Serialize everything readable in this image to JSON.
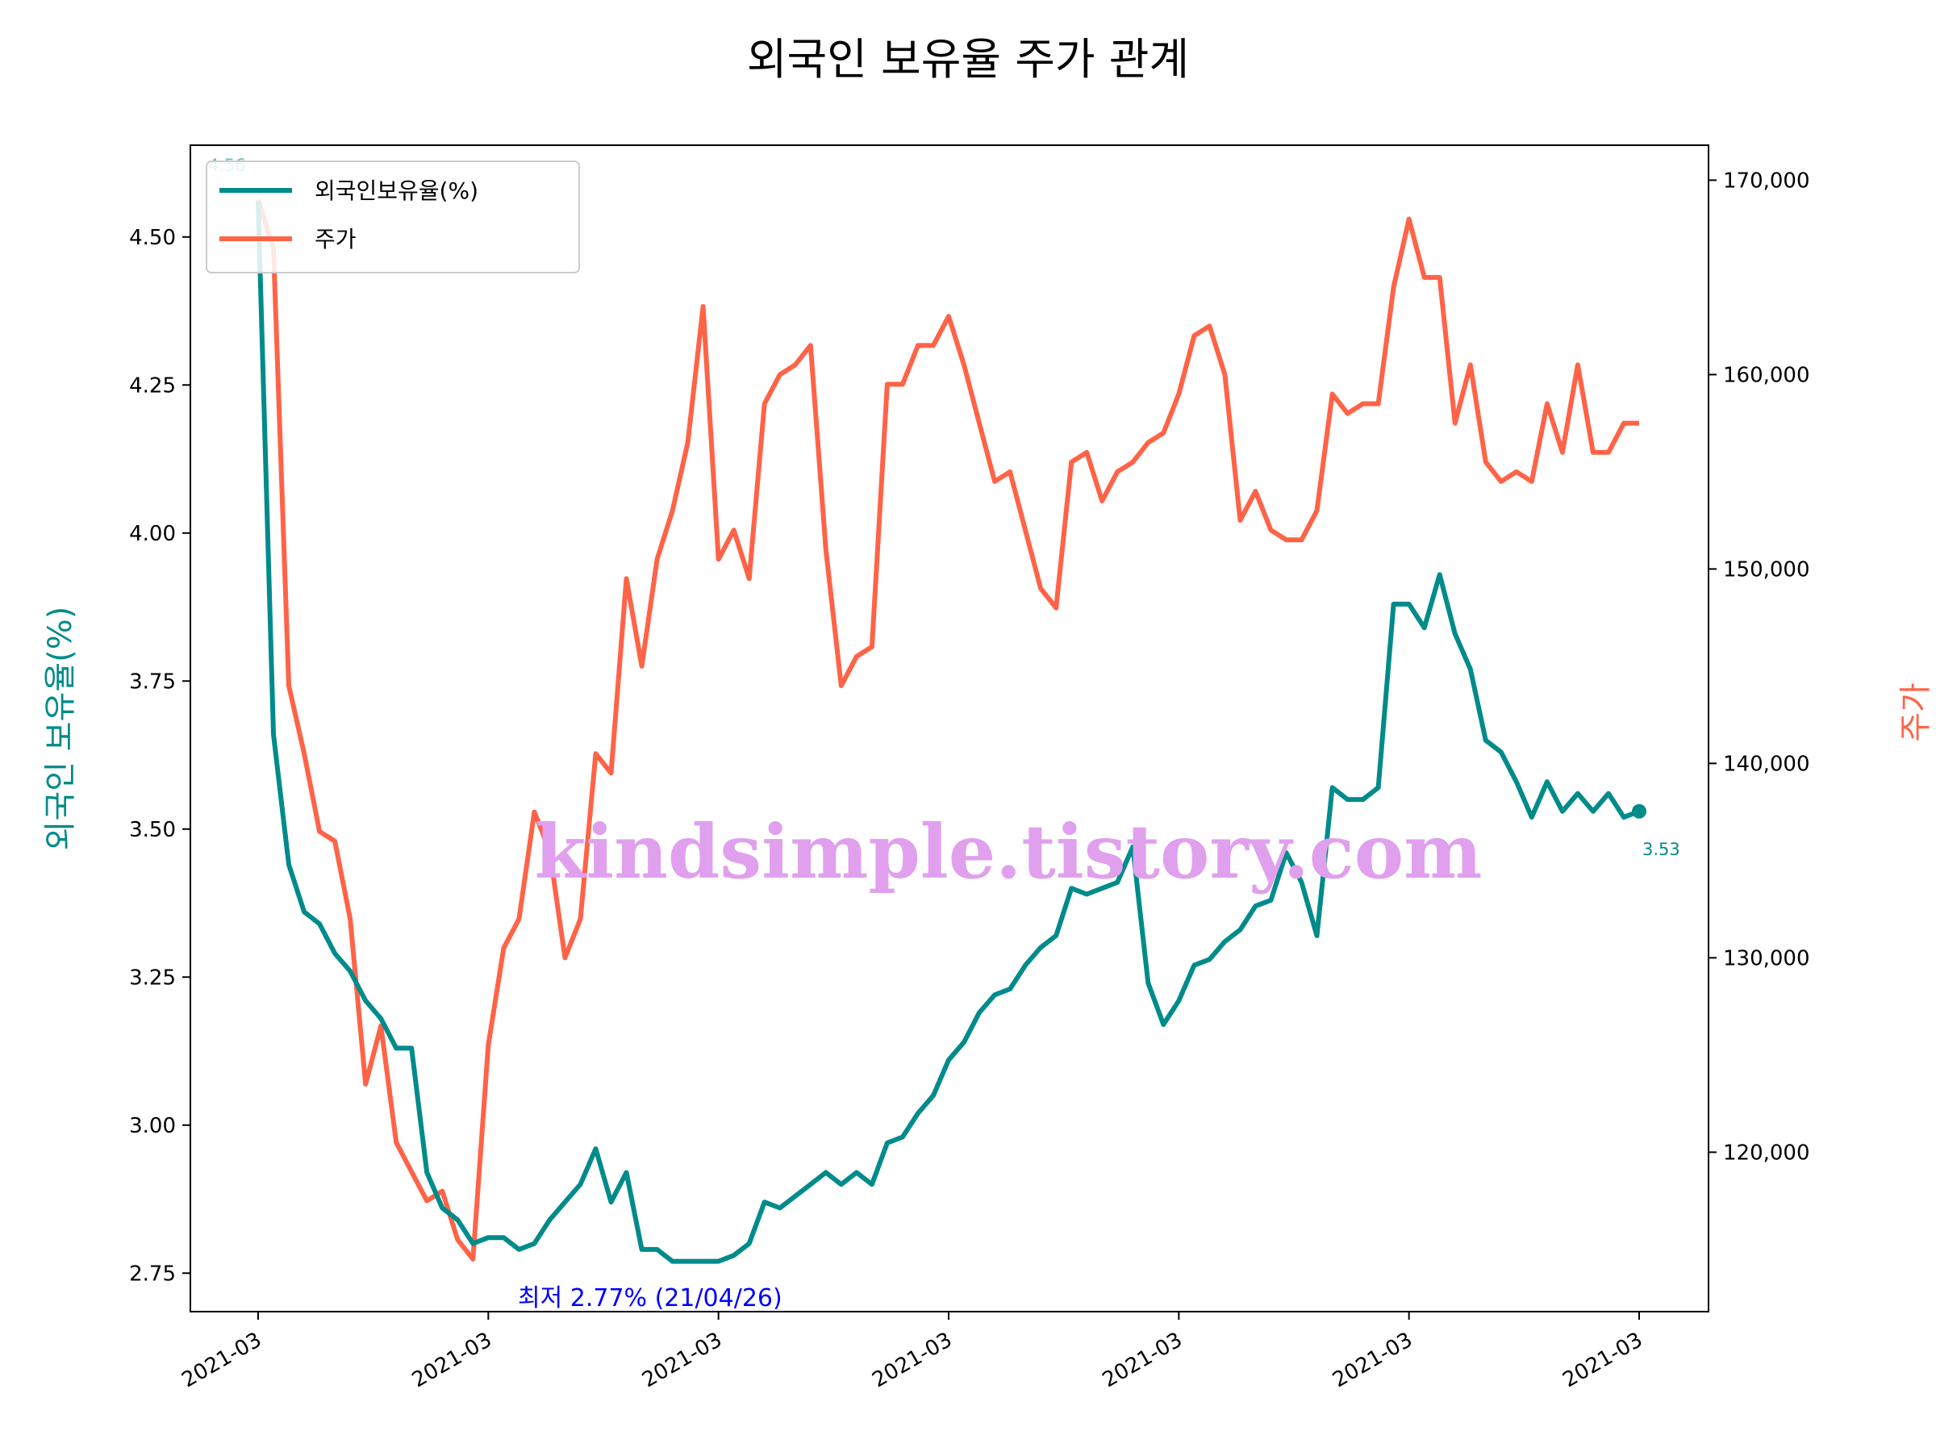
{
  "chart_data": {
    "type": "line",
    "title": "외국인 보유율 주가 관계",
    "xlabel": "",
    "ylabel_left": "외국인 보유율(%)",
    "ylabel_right": "주가",
    "x_tick_labels": [
      "2021-03",
      "2021-03",
      "2021-03",
      "2021-03",
      "2021-03",
      "2021-03",
      "2021-03"
    ],
    "ylim_left": [
      2.685,
      4.655
    ],
    "ylim_right": [
      111800,
      171800
    ],
    "yticks_left": [
      "2.75",
      "3.00",
      "3.25",
      "3.50",
      "3.75",
      "4.00",
      "4.25",
      "4.50"
    ],
    "yticks_right": [
      "120,000",
      "130,000",
      "140,000",
      "150,000",
      "160,000",
      "170,000"
    ],
    "grid": false,
    "legend_position": "top-left",
    "colors": {
      "ownership": "#008b8b",
      "price": "#ff6347",
      "annotation": "#0000ff",
      "watermark": "#e0a0ee"
    },
    "series": [
      {
        "name": "외국인보유율(%)",
        "axis": "left",
        "values": [
          4.56,
          3.66,
          3.44,
          3.36,
          3.34,
          3.29,
          3.26,
          3.21,
          3.18,
          3.13,
          3.13,
          2.92,
          2.86,
          2.84,
          2.8,
          2.81,
          2.81,
          2.79,
          2.8,
          2.84,
          2.87,
          2.9,
          2.96,
          2.87,
          2.92,
          2.79,
          2.79,
          2.77,
          2.77,
          2.77,
          2.77,
          2.78,
          2.8,
          2.87,
          2.86,
          2.88,
          2.9,
          2.92,
          2.9,
          2.92,
          2.9,
          2.97,
          2.98,
          3.02,
          3.05,
          3.11,
          3.14,
          3.19,
          3.22,
          3.23,
          3.27,
          3.3,
          3.32,
          3.4,
          3.39,
          3.4,
          3.41,
          3.47,
          3.24,
          3.17,
          3.21,
          3.27,
          3.28,
          3.31,
          3.33,
          3.37,
          3.38,
          3.46,
          3.41,
          3.32,
          3.57,
          3.55,
          3.55,
          3.57,
          3.88,
          3.88,
          3.84,
          3.93,
          3.83,
          3.77,
          3.65,
          3.63,
          3.58,
          3.52,
          3.58,
          3.53,
          3.56,
          3.53,
          3.56,
          3.52,
          3.53
        ]
      },
      {
        "name": "주가",
        "axis": "right",
        "values": [
          169000,
          166500,
          144000,
          140500,
          136500,
          136000,
          132000,
          123500,
          126500,
          120500,
          119000,
          117500,
          118000,
          115500,
          114500,
          125500,
          130500,
          132000,
          137500,
          135500,
          130000,
          132000,
          140500,
          139500,
          149500,
          145000,
          150500,
          153000,
          156500,
          163500,
          150500,
          152000,
          149500,
          158500,
          160000,
          160500,
          161500,
          151000,
          144000,
          145500,
          146000,
          159500,
          159500,
          161500,
          161500,
          163000,
          160500,
          157500,
          154500,
          155000,
          152000,
          149000,
          148000,
          155500,
          156000,
          153500,
          155000,
          155500,
          156500,
          157000,
          159000,
          162000,
          162500,
          160000,
          152500,
          154000,
          152000,
          151500,
          151500,
          153000,
          159000,
          158000,
          158500,
          158500,
          164500,
          168000,
          165000,
          165000,
          157500,
          160500,
          155500,
          154500,
          155000,
          154500,
          158500,
          156000,
          160500,
          156000,
          156000,
          157500,
          157500
        ]
      }
    ],
    "annotations": {
      "start_value": "4.56",
      "end_value": "3.53",
      "min_label": "최저 2.77% (21/04/26)"
    }
  },
  "watermark": "kindsimple.tistory.com"
}
